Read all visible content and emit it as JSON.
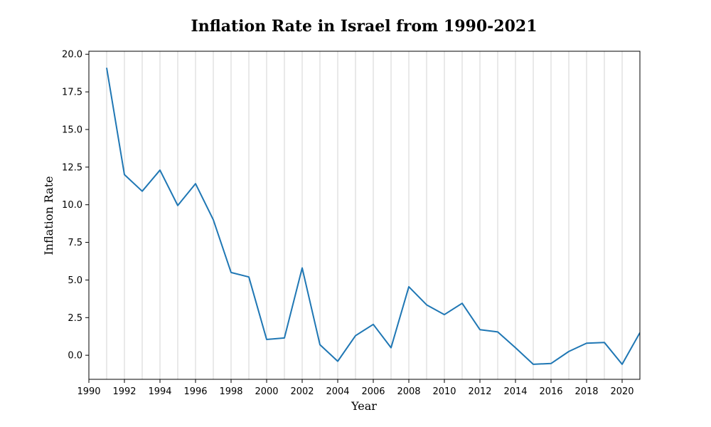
{
  "chart_data": {
    "type": "line",
    "title": "Inflation Rate in Israel from 1990-2021",
    "xlabel": "Year",
    "ylabel": "Inflation Rate",
    "xlim": [
      1990,
      2021
    ],
    "ylim": [
      -1.6,
      20.2
    ],
    "xticks": [
      1990,
      1992,
      1994,
      1996,
      1998,
      2000,
      2002,
      2004,
      2006,
      2008,
      2010,
      2012,
      2014,
      2016,
      2018,
      2020
    ],
    "yticks": [
      0.0,
      2.5,
      5.0,
      7.5,
      10.0,
      12.5,
      15.0,
      17.5,
      20.0
    ],
    "ytick_labels": [
      "0.0",
      "2.5",
      "5.0",
      "7.5",
      "10.0",
      "12.5",
      "15.0",
      "17.5",
      "20.0"
    ],
    "grid": "vertical, every year",
    "line_color": "#1f77b4",
    "grid_color": "#c8c8c8",
    "series": [
      {
        "x": [
          1991,
          1992,
          1993,
          1994,
          1995,
          1996,
          1997,
          1998,
          1999,
          2000,
          2001,
          2002,
          2003,
          2004,
          2005,
          2006,
          2007,
          2008,
          2009,
          2010,
          2011,
          2012,
          2013,
          2014,
          2015,
          2016,
          2017,
          2018,
          2019,
          2020,
          2021
        ],
        "values": [
          19.1,
          12.0,
          10.9,
          12.3,
          9.95,
          11.4,
          9.0,
          5.5,
          5.2,
          1.05,
          1.15,
          5.8,
          0.7,
          -0.4,
          1.3,
          2.05,
          0.5,
          4.55,
          3.35,
          2.7,
          3.45,
          1.7,
          1.55,
          0.5,
          -0.6,
          -0.55,
          0.25,
          0.8,
          0.85,
          -0.6,
          1.5
        ]
      }
    ]
  }
}
